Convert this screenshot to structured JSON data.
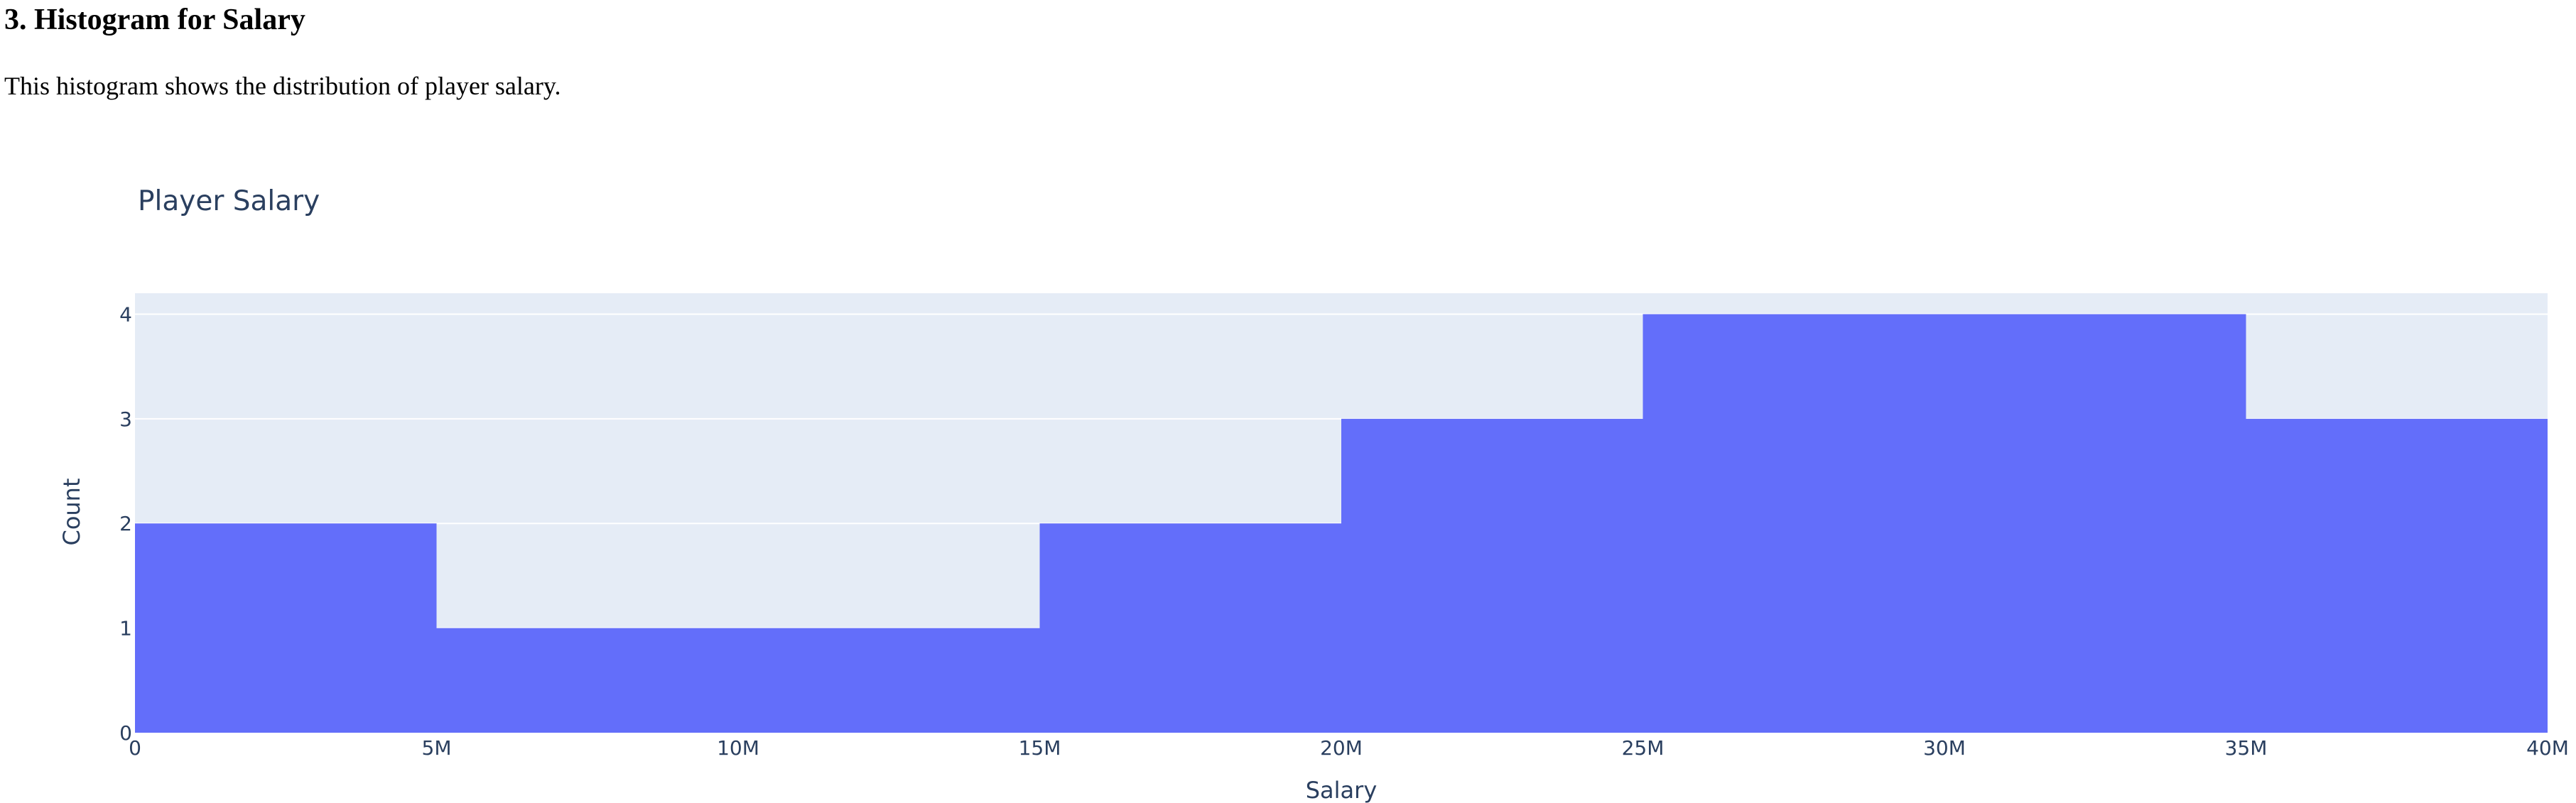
{
  "section": {
    "heading": "3. Histogram for Salary",
    "description": "This histogram shows the distribution of player salary."
  },
  "colors": {
    "bar": "#636efa",
    "plot_bg": "#e5ecf6",
    "grid": "#ffffff",
    "text": "#2a3f5f"
  },
  "chart_data": {
    "type": "bar",
    "title": "Player Salary",
    "xlabel": "Salary",
    "ylabel": "Count",
    "bin_edges": [
      0,
      5000000,
      10000000,
      15000000,
      20000000,
      25000000,
      30000000,
      35000000,
      40000000
    ],
    "counts": [
      2,
      1,
      1,
      2,
      3,
      4,
      4,
      3
    ],
    "xlim": [
      0,
      40000000
    ],
    "ylim": [
      0,
      4.2
    ],
    "x_ticks": [
      0,
      5000000,
      10000000,
      15000000,
      20000000,
      25000000,
      30000000,
      35000000,
      40000000
    ],
    "x_tick_labels": [
      "0",
      "5M",
      "10M",
      "15M",
      "20M",
      "25M",
      "30M",
      "35M",
      "40M"
    ],
    "y_ticks": [
      0,
      1,
      2,
      3,
      4
    ],
    "y_tick_labels": [
      "0",
      "1",
      "2",
      "3",
      "4"
    ],
    "grid": true
  }
}
